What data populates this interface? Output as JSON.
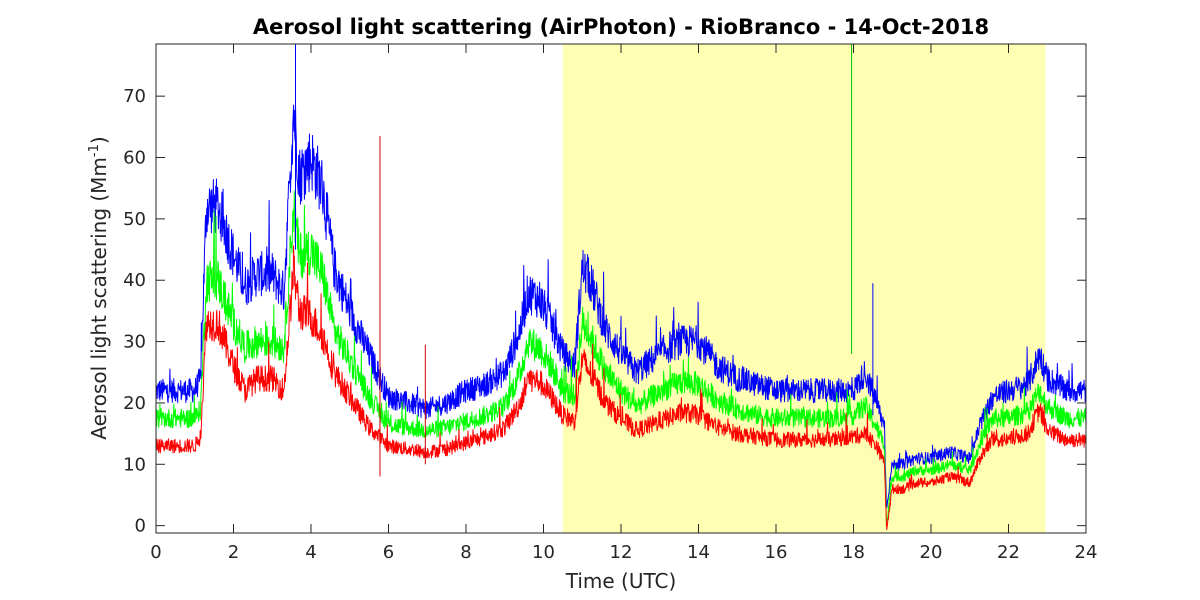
{
  "chart_data": {
    "type": "line",
    "title": "Aerosol light scattering (AirPhoton) - RioBranco - 14-Oct-2018",
    "xlabel": "Time (UTC)",
    "ylabel_main": "Aerosol light scattering (Mm",
    "ylabel_sup": "-1",
    "ylabel_close": ")",
    "xlim": [
      0,
      24
    ],
    "ylim": [
      -1.2,
      78.5
    ],
    "xticks": [
      0,
      2,
      4,
      6,
      8,
      10,
      12,
      14,
      16,
      18,
      20,
      22,
      24
    ],
    "yticks": [
      0,
      10,
      20,
      30,
      40,
      50,
      60,
      70
    ],
    "grid": false,
    "legend": "none",
    "highlight": {
      "x_start": 10.5,
      "x_end": 22.95,
      "color": "#ffffb3"
    },
    "spikes": [
      {
        "series": "red",
        "x": 5.78,
        "y_from": 8,
        "y_to": 63.5
      },
      {
        "series": "green",
        "x": 17.95,
        "y_from": 28,
        "y_to": 78.5
      },
      {
        "series": "blue",
        "x": 3.6,
        "y_from": 45,
        "y_to": 78.5
      },
      {
        "series": "blue",
        "x": 18.5,
        "y_from": 18,
        "y_to": 39.5
      },
      {
        "series": "red",
        "x": 6.95,
        "y_from": 10,
        "y_to": 29.5
      }
    ],
    "series": [
      {
        "color": "#0000ff",
        "x": [
          0,
          0.5,
          1.0,
          1.15,
          1.3,
          1.6,
          2.0,
          2.3,
          2.6,
          3.0,
          3.3,
          3.55,
          3.7,
          4.0,
          4.3,
          4.6,
          5.0,
          5.5,
          6.0,
          6.5,
          7.0,
          7.5,
          8.0,
          8.5,
          9.0,
          9.4,
          9.6,
          9.9,
          10.2,
          10.5,
          10.8,
          11.0,
          11.2,
          11.6,
          12.0,
          12.4,
          12.8,
          13.2,
          13.6,
          14.0,
          14.5,
          15.0,
          15.5,
          16.0,
          16.5,
          17.0,
          17.5,
          18.0,
          18.3,
          18.6,
          18.7,
          18.8,
          18.85,
          19.0,
          19.3,
          19.6,
          20.0,
          20.5,
          21.0,
          21.3,
          21.6,
          22.0,
          22.5,
          22.8,
          23.0,
          23.5,
          24.0
        ],
        "y": [
          22,
          22,
          22,
          24,
          52,
          52,
          44,
          39,
          41,
          41,
          38,
          68,
          57,
          60,
          55,
          42,
          35,
          28,
          21,
          20,
          19,
          20,
          22,
          23,
          25,
          32,
          38,
          37,
          33,
          28,
          26,
          42,
          40,
          32,
          28,
          25,
          27,
          29,
          30,
          30,
          26,
          24,
          23,
          22,
          22,
          22,
          22,
          22,
          25,
          20,
          18,
          16,
          3,
          10,
          10,
          11,
          11,
          12,
          11,
          17,
          21,
          22,
          23,
          28,
          24,
          22,
          22
        ]
      },
      {
        "color": "#00ff00",
        "x": [
          0,
          0.5,
          1.0,
          1.15,
          1.3,
          1.6,
          2.0,
          2.3,
          2.6,
          3.0,
          3.3,
          3.55,
          3.7,
          4.0,
          4.3,
          4.6,
          5.0,
          5.5,
          6.0,
          6.5,
          7.0,
          7.5,
          8.0,
          8.5,
          9.0,
          9.4,
          9.6,
          9.9,
          10.2,
          10.5,
          10.8,
          11.0,
          11.2,
          11.6,
          12.0,
          12.4,
          12.8,
          13.2,
          13.6,
          14.0,
          14.5,
          15.0,
          15.5,
          16.0,
          16.5,
          17.0,
          17.5,
          18.0,
          18.3,
          18.6,
          18.7,
          18.8,
          18.85,
          19.0,
          19.3,
          19.6,
          20.0,
          20.5,
          21.0,
          21.3,
          21.6,
          22.0,
          22.5,
          22.8,
          23.0,
          23.5,
          24.0
        ],
        "y": [
          17.5,
          17.5,
          17.5,
          19,
          40,
          40,
          33,
          29,
          30,
          30,
          29,
          52,
          44,
          45,
          41,
          32,
          27,
          21,
          16.5,
          16,
          15.5,
          16,
          17,
          18,
          19.5,
          25,
          30,
          29,
          26,
          22,
          21,
          33,
          31,
          25,
          22,
          19.5,
          21,
          22.5,
          23.5,
          23,
          20.5,
          19,
          18,
          17.5,
          17.5,
          17.5,
          17.5,
          18,
          19.5,
          16,
          14.5,
          13,
          0,
          8,
          8,
          9,
          9,
          10,
          9,
          14,
          17.5,
          17.5,
          18.5,
          22,
          19.5,
          17.5,
          17.5
        ]
      },
      {
        "color": "#ff0000",
        "x": [
          0,
          0.5,
          1.0,
          1.15,
          1.3,
          1.6,
          2.0,
          2.3,
          2.6,
          3.0,
          3.3,
          3.55,
          3.7,
          4.0,
          4.3,
          4.6,
          5.0,
          5.5,
          6.0,
          6.5,
          7.0,
          7.5,
          8.0,
          8.5,
          9.0,
          9.4,
          9.6,
          9.9,
          10.2,
          10.5,
          10.8,
          11.0,
          11.2,
          11.6,
          12.0,
          12.4,
          12.8,
          13.2,
          13.6,
          14.0,
          14.5,
          15.0,
          15.5,
          16.0,
          16.5,
          17.0,
          17.5,
          18.0,
          18.3,
          18.6,
          18.7,
          18.8,
          18.85,
          19.0,
          19.3,
          19.6,
          20.0,
          20.5,
          21.0,
          21.3,
          21.6,
          22.0,
          22.5,
          22.8,
          23.0,
          23.5,
          24.0
        ],
        "y": [
          13,
          13,
          13,
          14.5,
          33,
          33,
          26,
          22,
          24,
          24,
          22,
          42,
          35,
          34,
          31,
          25,
          21,
          16,
          13,
          12.5,
          12,
          12.5,
          13.5,
          14.5,
          16,
          20,
          24,
          23.5,
          21,
          18,
          17,
          27,
          25,
          20,
          17.5,
          15.5,
          16.5,
          17.5,
          18.5,
          18,
          16,
          15,
          14.5,
          14,
          14,
          14,
          14,
          14.5,
          15,
          13,
          11.5,
          10.5,
          -0.5,
          6,
          6,
          7,
          7,
          8,
          7,
          11.5,
          14,
          14,
          15,
          19,
          15.5,
          14,
          14
        ]
      }
    ]
  }
}
